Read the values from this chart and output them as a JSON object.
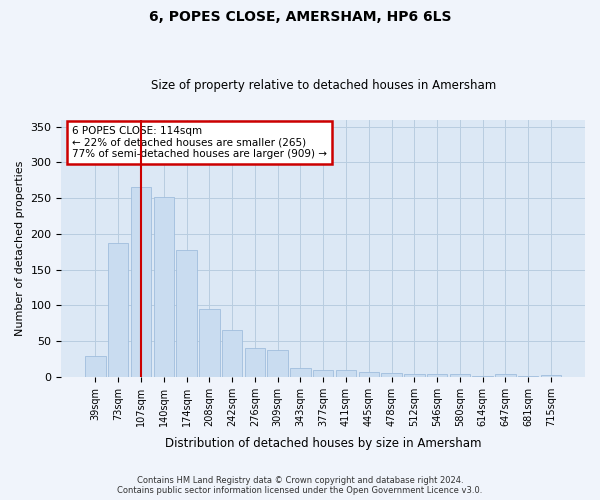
{
  "title": "6, POPES CLOSE, AMERSHAM, HP6 6LS",
  "subtitle": "Size of property relative to detached houses in Amersham",
  "xlabel": "Distribution of detached houses by size in Amersham",
  "ylabel": "Number of detached properties",
  "categories": [
    "39sqm",
    "73sqm",
    "107sqm",
    "140sqm",
    "174sqm",
    "208sqm",
    "242sqm",
    "276sqm",
    "309sqm",
    "343sqm",
    "377sqm",
    "411sqm",
    "445sqm",
    "478sqm",
    "512sqm",
    "546sqm",
    "580sqm",
    "614sqm",
    "647sqm",
    "681sqm",
    "715sqm"
  ],
  "values": [
    29,
    187,
    265,
    252,
    178,
    95,
    65,
    40,
    38,
    12,
    9,
    9,
    7,
    5,
    4,
    4,
    4,
    1,
    4,
    1,
    2
  ],
  "bar_color": "#c9dcf0",
  "bar_edge_color": "#a0bedd",
  "property_bar_index": 2,
  "property_line_color": "#cc0000",
  "annotation_line1": "6 POPES CLOSE: 114sqm",
  "annotation_line2": "← 22% of detached houses are smaller (265)",
  "annotation_line3": "77% of semi-detached houses are larger (909) →",
  "annotation_border_color": "#cc0000",
  "ylim_max": 360,
  "yticks": [
    0,
    50,
    100,
    150,
    200,
    250,
    300,
    350
  ],
  "chart_bg_color": "#dce8f5",
  "fig_bg_color": "#f0f4fb",
  "grid_color": "#b8cde0",
  "title_fontsize": 10,
  "subtitle_fontsize": 8.5,
  "footer1": "Contains HM Land Registry data © Crown copyright and database right 2024.",
  "footer2": "Contains public sector information licensed under the Open Government Licence v3.0."
}
